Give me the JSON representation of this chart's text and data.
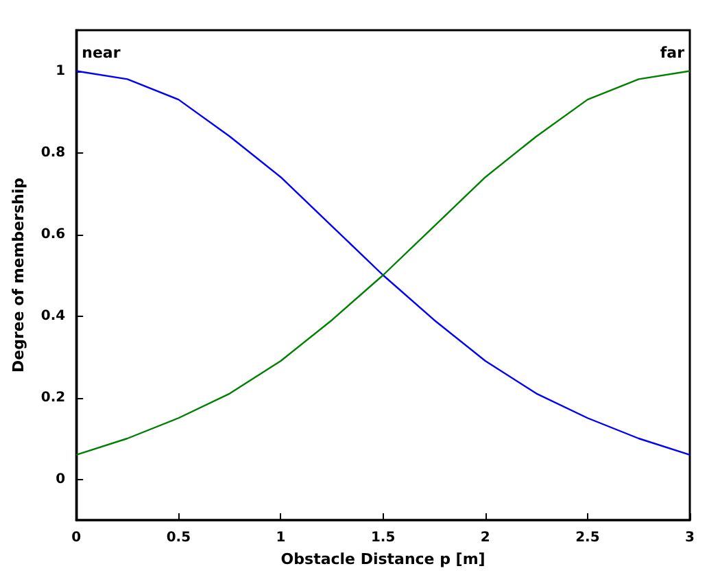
{
  "chart_data": {
    "type": "line",
    "xlabel": "Obstacle Distance p [m]",
    "ylabel": "Degree of membership",
    "x": [
      0,
      0.25,
      0.5,
      0.75,
      1,
      1.25,
      1.5,
      1.75,
      2,
      2.25,
      2.5,
      2.75,
      3
    ],
    "series": [
      {
        "color": "#0000ff",
        "values": [
          1,
          0.98,
          0.93,
          0.84,
          0.74,
          0.62,
          0.5,
          0.39,
          0.29,
          0.21,
          0.15,
          0.1,
          0.06
        ]
      },
      {
        "color": "#008000",
        "values": [
          0.06,
          0.1,
          0.15,
          0.21,
          0.29,
          0.39,
          0.5,
          0.62,
          0.74,
          0.84,
          0.93,
          0.98,
          1
        ]
      }
    ],
    "annotations": [
      {
        "text": "near",
        "x": 0,
        "y": 1
      },
      {
        "text": "far",
        "x": 3,
        "y": 1
      }
    ],
    "xlim": [
      0,
      3
    ],
    "xticks": [
      0,
      0.5,
      1,
      1.5,
      2,
      2.5,
      3
    ],
    "ylim": [
      -0.1,
      1.1
    ],
    "yticks": [
      0,
      0.2,
      0.4,
      0.6,
      0.8,
      1
    ],
    "grid": false,
    "marker": "none",
    "line_style": "solid"
  }
}
